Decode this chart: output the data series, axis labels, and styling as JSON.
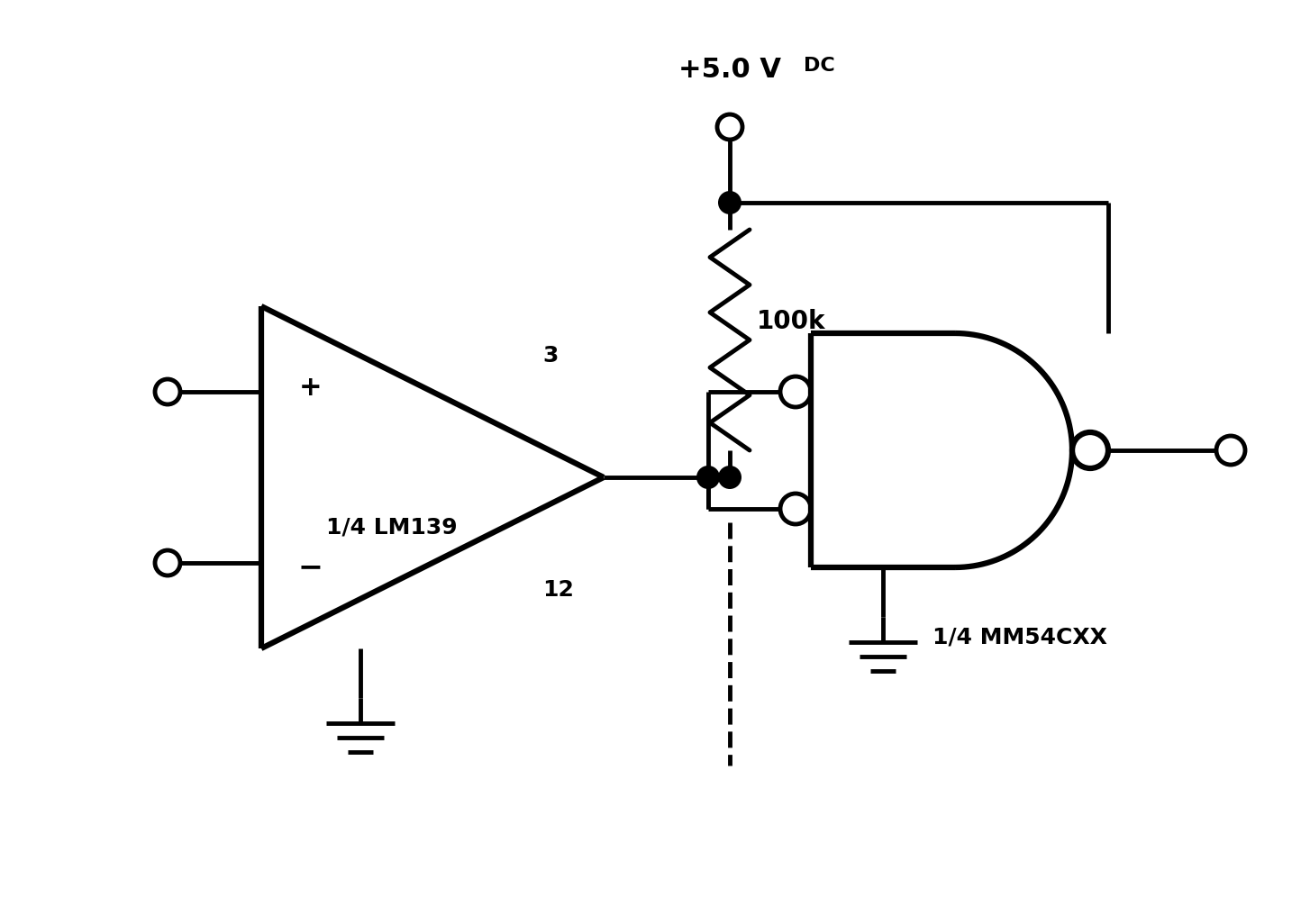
{
  "background_color": "#ffffff",
  "line_color": "#000000",
  "lw": 3.5,
  "fig_width": 14.54,
  "fig_height": 9.96,
  "label_lm139": "1/4 LM139",
  "label_pin3": "3",
  "label_pin12": "12",
  "label_100k": "100k",
  "label_mm54cxx": "1/4 MM54CXX",
  "label_vdc": "+5.0 V",
  "label_dc_sub": "DC",
  "label_plus": "+",
  "label_minus": "−"
}
